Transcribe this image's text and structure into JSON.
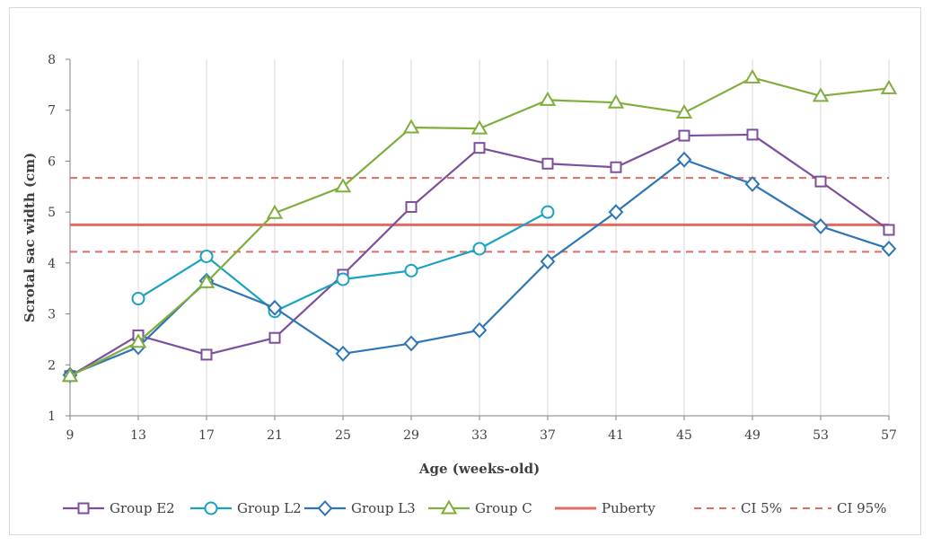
{
  "chart_data": {
    "type": "line",
    "title": "",
    "xlabel": "Age (weeks-old)",
    "ylabel": "Scrotal sac width (cm)",
    "x": [
      9,
      13,
      17,
      21,
      25,
      29,
      33,
      37,
      41,
      45,
      49,
      53,
      57
    ],
    "xlim": [
      9,
      57
    ],
    "ylim": [
      1,
      8
    ],
    "yticks": [
      1,
      2,
      3,
      4,
      5,
      6,
      7,
      8
    ],
    "grid": "vertical",
    "legend_position": "bottom",
    "series": [
      {
        "name": "Group E2",
        "color": "#7B4F9D",
        "marker": "square",
        "values": [
          1.78,
          2.58,
          2.2,
          2.53,
          3.77,
          5.1,
          6.26,
          5.95,
          5.88,
          6.5,
          6.52,
          5.6,
          4.65
        ]
      },
      {
        "name": "Group L2",
        "color": "#1AA2C2",
        "marker": "circle",
        "values": [
          null,
          3.3,
          4.13,
          3.05,
          3.68,
          3.85,
          4.28,
          5.0,
          null,
          null,
          null,
          null,
          null
        ]
      },
      {
        "name": "Group L3",
        "color": "#2E75B6",
        "marker": "diamond",
        "values": [
          1.8,
          2.35,
          3.65,
          3.12,
          2.22,
          2.42,
          2.68,
          4.03,
          5.0,
          6.03,
          5.55,
          4.72,
          4.28
        ]
      },
      {
        "name": "Group C",
        "color": "#7FAE3D",
        "marker": "triangle",
        "values": [
          1.78,
          2.45,
          3.62,
          4.98,
          5.5,
          6.66,
          6.64,
          7.2,
          7.15,
          6.95,
          7.64,
          7.28,
          7.43
        ]
      }
    ],
    "reference_lines": [
      {
        "name": "Puberty",
        "value": 4.75,
        "color": "#E26B62",
        "style": "solid"
      },
      {
        "name": "CI 5%",
        "value": 5.67,
        "color": "#E26B62",
        "style": "dashed"
      },
      {
        "name": "CI 95%",
        "value": 4.22,
        "color": "#E26B62",
        "style": "dashed"
      }
    ]
  }
}
